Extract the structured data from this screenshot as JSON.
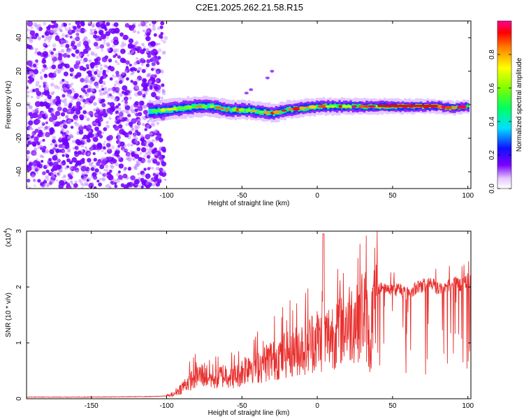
{
  "title": "C2E1.2025.262.21.58.R15",
  "chart_data": [
    {
      "type": "heatmap",
      "xlabel": "Height of straight line (km)",
      "ylabel": "Frequency (Hz)",
      "xlim": [
        -193,
        102
      ],
      "ylim": [
        -50,
        50
      ],
      "xticks": [
        -150,
        -100,
        -50,
        0,
        50,
        100
      ],
      "xtick_labels": [
        "-150",
        "-100",
        "-50",
        "0",
        "50",
        "100"
      ],
      "yticks": [
        -40,
        -20,
        0,
        20,
        40
      ],
      "ytick_labels": [
        "-40",
        "-20",
        "0",
        "20",
        "40"
      ],
      "ridge": {
        "x": [
          -112,
          -100,
          -90,
          -80,
          -70,
          -60,
          -50,
          -40,
          -30,
          -20,
          -10,
          0,
          10,
          20,
          30,
          40,
          50,
          60,
          70,
          80,
          90,
          100
        ],
        "freq": [
          -4,
          -3,
          -2,
          -1,
          -1,
          -3,
          -3,
          -4,
          -5,
          -3,
          -2,
          -1,
          -1,
          -1,
          -1,
          -1,
          -1,
          -1,
          -1,
          -1,
          -2,
          -1
        ]
      },
      "noise_region_x": [
        -193,
        -100
      ],
      "colorbar": {
        "label": "Normalized spectral amplitude",
        "ticks": [
          0.0,
          0.2,
          0.4,
          0.6,
          0.8
        ],
        "tick_labels": [
          "0.0",
          "0.2",
          "0.4",
          "0.6",
          "0.8"
        ],
        "range": [
          0,
          1
        ]
      }
    },
    {
      "type": "line",
      "xlabel": "Height of straight line (km)",
      "ylabel": "SNR (10 * v/v)",
      "exponent_label": "(x10",
      "exponent_power": "4",
      "exponent_close": ")",
      "xlim": [
        -193,
        102
      ],
      "ylim": [
        0,
        3
      ],
      "xticks": [
        -150,
        -100,
        -50,
        0,
        50,
        100
      ],
      "xtick_labels": [
        "-150",
        "-100",
        "-50",
        "0",
        "50",
        "100"
      ],
      "yticks": [
        0,
        1,
        2,
        3
      ],
      "ytick_labels": [
        "0",
        "1",
        "2",
        "3"
      ],
      "series": [
        {
          "name": "SNR",
          "color": "#e8302e",
          "x": [
            -193,
            -150,
            -110,
            -100,
            -95,
            -90,
            -85,
            -80,
            -75,
            -70,
            -65,
            -60,
            -55,
            -50,
            -45,
            -40,
            -35,
            -30,
            -25,
            -20,
            -15,
            -10,
            -5,
            0,
            3,
            4,
            5,
            10,
            15,
            20,
            25,
            30,
            32,
            35,
            37,
            40,
            45,
            50,
            55,
            60,
            65,
            70,
            75,
            80,
            85,
            90,
            95,
            100,
            102
          ],
          "y": [
            0.03,
            0.03,
            0.04,
            0.05,
            0.1,
            0.25,
            0.4,
            0.5,
            0.55,
            0.45,
            0.5,
            0.55,
            0.5,
            0.6,
            0.8,
            0.75,
            0.8,
            0.9,
            0.95,
            1.05,
            1.1,
            1.15,
            1.25,
            1.35,
            1.3,
            2.95,
            1.35,
            1.45,
            1.6,
            1.7,
            1.8,
            1.95,
            2.0,
            1.1,
            2.0,
            2.1,
            2.1,
            2.05,
            2.1,
            2.0,
            2.1,
            2.15,
            2.2,
            2.1,
            2.15,
            2.2,
            2.15,
            2.25,
            2.3
          ]
        }
      ]
    }
  ]
}
